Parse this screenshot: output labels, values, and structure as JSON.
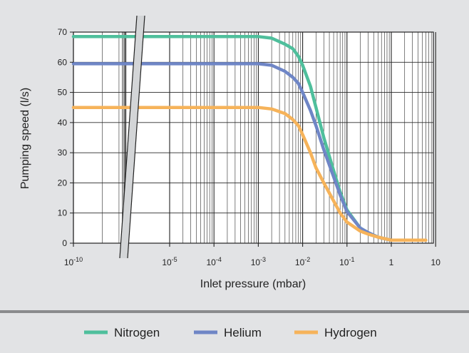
{
  "chart_data": {
    "type": "line",
    "title": "",
    "xlabel": "Inlet pressure (mbar)",
    "ylabel": "Pumping speed (l/s)",
    "x_scale": "log",
    "axis_break": "between 10^-10 and 10^-5",
    "xlim": [
      1e-10,
      10
    ],
    "ylim": [
      0,
      70
    ],
    "grid": true,
    "legend_position": "bottom",
    "x_ticks": [
      {
        "value": 1e-10,
        "base": "10",
        "exp": "-10"
      },
      {
        "value": 1e-05,
        "base": "10",
        "exp": "-5"
      },
      {
        "value": 0.0001,
        "base": "10",
        "exp": "-4"
      },
      {
        "value": 0.001,
        "base": "10",
        "exp": "-3"
      },
      {
        "value": 0.01,
        "base": "10",
        "exp": "-2"
      },
      {
        "value": 0.1,
        "base": "10",
        "exp": "-1"
      },
      {
        "value": 1,
        "base": "1",
        "exp": ""
      },
      {
        "value": 10,
        "base": "10",
        "exp": ""
      }
    ],
    "y_ticks": [
      0,
      10,
      20,
      30,
      40,
      50,
      60,
      70
    ],
    "series": [
      {
        "name": "Nitrogen",
        "color": "#4fbf9c",
        "x": [
          1e-10,
          1e-05,
          0.0001,
          0.001,
          0.002,
          0.004,
          0.006,
          0.008,
          0.01,
          0.015,
          0.02,
          0.03,
          0.05,
          0.07,
          0.1,
          0.2,
          0.3,
          0.5,
          1,
          2,
          6
        ],
        "y": [
          68.5,
          68.5,
          68.5,
          68.5,
          68,
          66,
          64.5,
          62,
          59,
          52,
          45,
          35,
          24,
          17,
          11,
          5,
          3.5,
          2,
          1,
          1,
          1
        ]
      },
      {
        "name": "Helium",
        "color": "#6f86c6",
        "x": [
          1e-10,
          1e-05,
          0.0001,
          0.001,
          0.002,
          0.004,
          0.006,
          0.008,
          0.01,
          0.015,
          0.02,
          0.03,
          0.05,
          0.07,
          0.1,
          0.2,
          0.3,
          0.5,
          1,
          2,
          6
        ],
        "y": [
          59.5,
          59.5,
          59.5,
          59.5,
          59,
          57,
          55,
          53,
          50,
          44,
          39,
          31,
          22,
          16,
          10.5,
          5,
          3.5,
          2,
          1,
          1,
          1
        ]
      },
      {
        "name": "Hydrogen",
        "color": "#f6b35a",
        "x": [
          1e-10,
          1e-05,
          0.0001,
          0.001,
          0.002,
          0.004,
          0.006,
          0.008,
          0.01,
          0.015,
          0.02,
          0.03,
          0.05,
          0.07,
          0.1,
          0.2,
          0.3,
          0.5,
          1,
          2,
          6
        ],
        "y": [
          45,
          45,
          45,
          45,
          44.5,
          43,
          41,
          39,
          36,
          30,
          25,
          20,
          14,
          10,
          7,
          4,
          3,
          2,
          1,
          1,
          1
        ]
      }
    ]
  }
}
